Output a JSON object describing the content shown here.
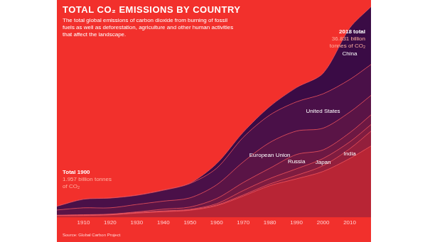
{
  "chart_data": {
    "type": "stacked_area",
    "title": "TOTAL CO₂ EMISSIONS BY COUNTRY",
    "subtitle": "The total global emissions of carbon dioxide from burning of fossil fuels as well as deforestation, agriculture and other human activities that affect the landscape.",
    "annotations": [
      {
        "label": "Total 1900",
        "text": "1.957 billion tonnes of CO₂"
      },
      {
        "label": "2018 total",
        "text": "36.831 billion tonnes of CO₂"
      }
    ],
    "source": "Source: Global Carbon Project",
    "x": [
      1900,
      1910,
      1920,
      1930,
      1940,
      1950,
      1960,
      1970,
      1980,
      1990,
      2000,
      2010,
      2018
    ],
    "series": [
      {
        "name": "China",
        "color": "#3a0b45",
        "values": [
          0.0,
          0.02,
          0.02,
          0.03,
          0.05,
          0.08,
          0.8,
          0.9,
          1.5,
          2.5,
          3.6,
          9.0,
          10.1
        ]
      },
      {
        "name": "United States",
        "color": "#4a1048",
        "values": [
          0.66,
          1.5,
          1.7,
          1.6,
          1.9,
          2.5,
          2.9,
          4.3,
          4.8,
          5.1,
          6.0,
          5.7,
          5.4
        ]
      },
      {
        "name": "European Union",
        "color": "#5a1446",
        "values": [
          0.9,
          1.2,
          1.1,
          1.3,
          1.4,
          1.6,
          2.4,
          3.6,
          4.5,
          4.1,
          3.8,
          3.6,
          3.4
        ]
      },
      {
        "name": "Russia",
        "color": "#6d1843",
        "values": [
          0.05,
          0.08,
          0.05,
          0.1,
          0.3,
          0.4,
          0.9,
          1.4,
          1.8,
          2.5,
          1.5,
          1.6,
          1.7
        ]
      },
      {
        "name": "Japan",
        "color": "#7f1c40",
        "values": [
          0.02,
          0.04,
          0.05,
          0.07,
          0.1,
          0.1,
          0.23,
          0.77,
          0.95,
          1.15,
          1.26,
          1.2,
          1.15
        ]
      },
      {
        "name": "India",
        "color": "#931f3c",
        "values": [
          0.02,
          0.03,
          0.03,
          0.04,
          0.05,
          0.07,
          0.12,
          0.2,
          0.3,
          0.6,
          1.0,
          1.7,
          2.6
        ]
      },
      {
        "name": null,
        "color": "#b82535",
        "values": [
          0.307,
          0.33,
          0.45,
          0.76,
          1.0,
          1.25,
          2.05,
          3.73,
          5.55,
          6.75,
          8.04,
          10.3,
          12.481
        ]
      }
    ],
    "xlim": [
      1900,
      2018
    ],
    "xticks": [
      1910,
      1920,
      1930,
      1940,
      1950,
      1960,
      1970,
      1980,
      1990,
      2000,
      2010
    ],
    "ylim": [
      0,
      38
    ],
    "stacked": true,
    "grid": false,
    "legend": "none",
    "tick_labels": "x"
  }
}
